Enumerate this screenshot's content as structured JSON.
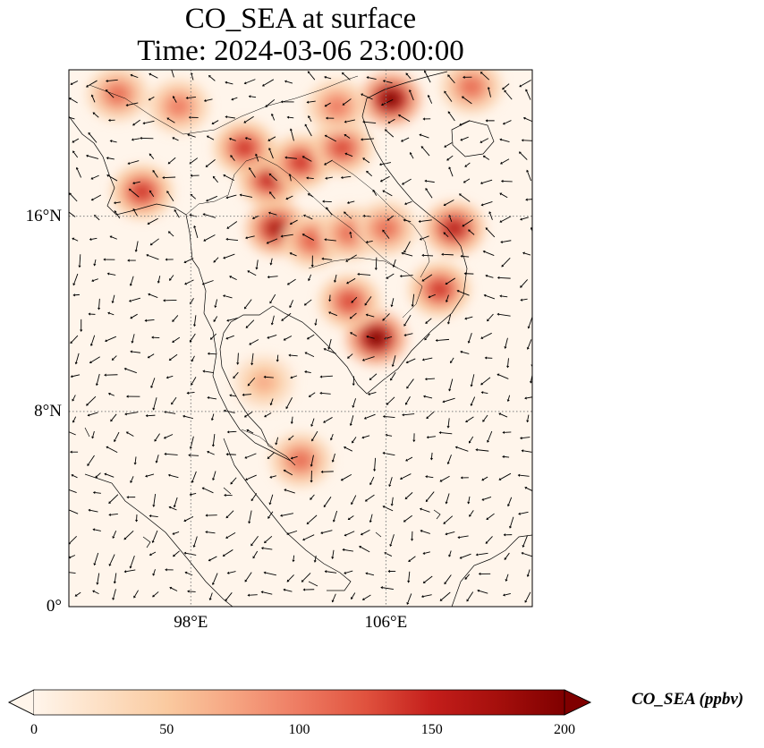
{
  "title": {
    "line1": "CO_SEA at surface",
    "line2": "Time: 2024-03-06 23:00:00"
  },
  "map": {
    "lon_range": [
      93,
      112
    ],
    "lat_range": [
      0,
      22
    ],
    "lon_ticks": [
      {
        "value": 98,
        "label": "98°E"
      },
      {
        "value": 106,
        "label": "106°E"
      }
    ],
    "lat_ticks": [
      {
        "value": 0,
        "label": "0°"
      },
      {
        "value": 8,
        "label": "8°N"
      },
      {
        "value": 16,
        "label": "16°N"
      }
    ],
    "gridlines": "dotted",
    "overlay": "wind vectors (arrows)",
    "high_concentration_areas": [
      {
        "lon": 106.2,
        "lat": 20.8,
        "level": 200
      },
      {
        "lon": 105.6,
        "lat": 11.0,
        "level": 200
      },
      {
        "lon": 101.5,
        "lat": 15.5,
        "level": 170
      },
      {
        "lon": 101.2,
        "lat": 17.5,
        "level": 150
      },
      {
        "lon": 108.8,
        "lat": 15.5,
        "level": 160
      },
      {
        "lon": 108.2,
        "lat": 13.0,
        "level": 140
      },
      {
        "lon": 102.5,
        "lat": 18.2,
        "level": 140
      },
      {
        "lon": 104.2,
        "lat": 18.8,
        "level": 130
      },
      {
        "lon": 96.0,
        "lat": 17.0,
        "level": 140
      },
      {
        "lon": 100.2,
        "lat": 18.8,
        "level": 140
      },
      {
        "lon": 103.0,
        "lat": 15.0,
        "level": 120
      },
      {
        "lon": 104.5,
        "lat": 15.3,
        "level": 110
      },
      {
        "lon": 104.5,
        "lat": 12.5,
        "level": 130
      },
      {
        "lon": 95.0,
        "lat": 21.0,
        "level": 110
      },
      {
        "lon": 97.5,
        "lat": 20.5,
        "level": 100
      },
      {
        "lon": 104.0,
        "lat": 20.5,
        "level": 100
      },
      {
        "lon": 109.5,
        "lat": 21.3,
        "level": 110
      },
      {
        "lon": 101.0,
        "lat": 9.2,
        "level": 70
      },
      {
        "lon": 102.5,
        "lat": 6.0,
        "level": 110
      },
      {
        "lon": 106.0,
        "lat": 15.5,
        "level": 110
      }
    ]
  },
  "colorbar": {
    "label": "CO_SEA (ppbv)",
    "min": 0,
    "max": 200,
    "extend": "both",
    "ticks": [
      {
        "value": 0,
        "label": "0"
      },
      {
        "value": 50,
        "label": "50"
      },
      {
        "value": 100,
        "label": "100"
      },
      {
        "value": 150,
        "label": "150"
      },
      {
        "value": 200,
        "label": "200"
      }
    ],
    "colormap": [
      "#fff5eb",
      "#fee6ce",
      "#fdd0a2",
      "#fdae6b",
      "#fd8d3c",
      "#f16913",
      "#d94801",
      "#a63603",
      "#7f2704"
    ],
    "colormap_red": [
      "#fff5eb",
      "#fde0c5",
      "#facaa0",
      "#f6a582",
      "#ee7b62",
      "#e0523e",
      "#c41e1b",
      "#a50f0c",
      "#7f0000"
    ]
  },
  "colors": {
    "ocean_background": "#fff5eb",
    "coastline": "#000000",
    "gridline": "#7f7f7f"
  }
}
